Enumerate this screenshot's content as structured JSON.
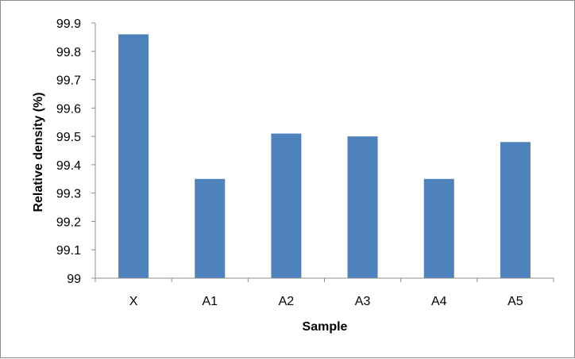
{
  "chart_data": {
    "type": "bar",
    "title": "",
    "xlabel": "Sample",
    "ylabel": "Relative density (%)",
    "categories": [
      "X",
      "A1",
      "A2",
      "A3",
      "A4",
      "A5"
    ],
    "values": [
      99.86,
      99.35,
      99.51,
      99.5,
      99.35,
      99.48
    ],
    "ylim": [
      99,
      99.9
    ],
    "yticks": [
      "99",
      "99.1",
      "99.2",
      "99.3",
      "99.4",
      "99.5",
      "99.6",
      "99.7",
      "99.8",
      "99.9"
    ],
    "grid": false,
    "legend": "none",
    "bar_color": "#4f81bd"
  }
}
